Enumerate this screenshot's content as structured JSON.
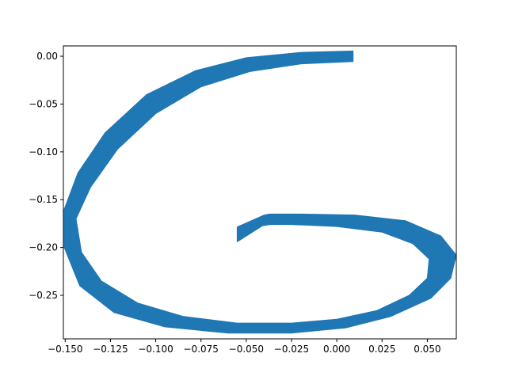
{
  "chart_data": {
    "type": "area",
    "title": "",
    "xlabel": "",
    "ylabel": "",
    "xlim": [
      -0.151,
      0.066
    ],
    "ylim": [
      -0.2955,
      0.0108
    ],
    "grid": false,
    "legend": null,
    "fill_color": "#1f77b4",
    "x_ticks": [
      {
        "value": -0.15,
        "label": "−0.150"
      },
      {
        "value": -0.125,
        "label": "−0.125"
      },
      {
        "value": -0.1,
        "label": "−0.100"
      },
      {
        "value": -0.075,
        "label": "−0.075"
      },
      {
        "value": -0.05,
        "label": "−0.050"
      },
      {
        "value": -0.025,
        "label": "−0.025"
      },
      {
        "value": 0.0,
        "label": "0.000"
      },
      {
        "value": 0.025,
        "label": "0.025"
      },
      {
        "value": 0.05,
        "label": "0.050"
      }
    ],
    "y_ticks": [
      {
        "value": 0.0,
        "label": "0.00"
      },
      {
        "value": -0.05,
        "label": "−0.05"
      },
      {
        "value": -0.1,
        "label": "−0.10"
      },
      {
        "value": -0.15,
        "label": "−0.15"
      },
      {
        "value": -0.2,
        "label": "−0.20"
      },
      {
        "value": -0.25,
        "label": "−0.25"
      }
    ],
    "series": [
      {
        "outer": [
          [
            0.009,
            0.0055
          ],
          [
            0.009,
            -0.0055
          ],
          [
            -0.02,
            -0.008
          ],
          [
            -0.048,
            -0.016
          ],
          [
            -0.075,
            -0.032
          ],
          [
            -0.1,
            -0.06
          ],
          [
            -0.121,
            -0.097
          ],
          [
            -0.136,
            -0.137
          ],
          [
            -0.144,
            -0.17
          ],
          [
            -0.141,
            -0.205
          ],
          [
            -0.13,
            -0.235
          ],
          [
            -0.11,
            -0.258
          ],
          [
            -0.085,
            -0.272
          ],
          [
            -0.055,
            -0.279
          ],
          [
            -0.025,
            -0.279
          ],
          [
            0.0,
            -0.275
          ],
          [
            0.022,
            -0.266
          ],
          [
            0.04,
            -0.25
          ],
          [
            0.05,
            -0.232
          ],
          [
            0.051,
            -0.212
          ],
          [
            0.042,
            -0.196
          ],
          [
            0.025,
            -0.184
          ],
          [
            0.0,
            -0.178
          ],
          [
            -0.025,
            -0.176
          ],
          [
            -0.037,
            -0.176
          ],
          [
            -0.041,
            -0.1772
          ],
          [
            -0.055,
            -0.194
          ],
          [
            -0.055,
            -0.2
          ],
          [
            -0.037,
            -0.2
          ],
          [
            -0.025,
            -0.188
          ],
          [
            0.0,
            -0.187
          ],
          [
            0.025,
            -0.19
          ],
          [
            0.043,
            -0.2
          ],
          [
            0.05,
            -0.212
          ],
          [
            0.048,
            -0.23
          ],
          [
            0.038,
            -0.247
          ],
          [
            0.02,
            -0.26
          ],
          [
            0.0,
            -0.268
          ],
          [
            -0.025,
            -0.272
          ],
          [
            -0.055,
            -0.272
          ],
          [
            -0.083,
            -0.266
          ],
          [
            -0.106,
            -0.252
          ],
          [
            -0.122,
            -0.23
          ],
          [
            -0.131,
            -0.203
          ],
          [
            -0.133,
            -0.172
          ],
          [
            -0.126,
            -0.14
          ],
          [
            -0.113,
            -0.105
          ],
          [
            -0.094,
            -0.072
          ],
          [
            -0.072,
            -0.046
          ],
          [
            -0.047,
            -0.03
          ],
          [
            -0.02,
            -0.02
          ],
          [
            0.009,
            -0.0055
          ]
        ],
        "shape": [
          [
            0.009,
            0.0055
          ],
          [
            -0.02,
            0.004
          ],
          [
            -0.05,
            -0.0015
          ],
          [
            -0.078,
            -0.015
          ],
          [
            -0.105,
            -0.04
          ],
          [
            -0.128,
            -0.08
          ],
          [
            -0.143,
            -0.122
          ],
          [
            -0.1505,
            -0.16
          ],
          [
            -0.1505,
            -0.2
          ],
          [
            -0.142,
            -0.24
          ],
          [
            -0.123,
            -0.268
          ],
          [
            -0.095,
            -0.283
          ],
          [
            -0.06,
            -0.2895
          ],
          [
            -0.025,
            -0.2895
          ],
          [
            0.005,
            -0.284
          ],
          [
            0.03,
            -0.272
          ],
          [
            0.052,
            -0.253
          ],
          [
            0.063,
            -0.232
          ],
          [
            0.066,
            -0.208
          ],
          [
            0.0575,
            -0.188
          ],
          [
            0.038,
            -0.172
          ],
          [
            0.01,
            -0.166
          ],
          [
            -0.02,
            -0.165
          ],
          [
            -0.037,
            -0.165
          ],
          [
            -0.04,
            -0.166
          ],
          [
            -0.055,
            -0.1785
          ],
          [
            -0.055,
            -0.194
          ],
          [
            -0.041,
            -0.1772
          ],
          [
            -0.037,
            -0.176
          ],
          [
            -0.025,
            -0.176
          ],
          [
            0.0,
            -0.178
          ],
          [
            0.025,
            -0.184
          ],
          [
            0.042,
            -0.196
          ],
          [
            0.051,
            -0.212
          ],
          [
            0.05,
            -0.232
          ],
          [
            0.04,
            -0.25
          ],
          [
            0.022,
            -0.266
          ],
          [
            0.0,
            -0.275
          ],
          [
            -0.025,
            -0.279
          ],
          [
            -0.055,
            -0.279
          ],
          [
            -0.085,
            -0.272
          ],
          [
            -0.11,
            -0.258
          ],
          [
            -0.13,
            -0.235
          ],
          [
            -0.141,
            -0.205
          ],
          [
            -0.144,
            -0.17
          ],
          [
            -0.136,
            -0.137
          ],
          [
            -0.121,
            -0.097
          ],
          [
            -0.1,
            -0.06
          ],
          [
            -0.075,
            -0.032
          ],
          [
            -0.048,
            -0.016
          ],
          [
            -0.02,
            -0.008
          ],
          [
            0.009,
            -0.0055
          ]
        ],
        "inner_edge": [
          [
            -0.055,
            -0.2
          ],
          [
            -0.037,
            -0.2
          ],
          [
            -0.025,
            -0.188
          ],
          [
            0.0,
            -0.187
          ],
          [
            0.025,
            -0.19
          ],
          [
            0.043,
            -0.2
          ],
          [
            0.05,
            -0.212
          ],
          [
            0.048,
            -0.23
          ],
          [
            0.038,
            -0.247
          ],
          [
            0.02,
            -0.26
          ],
          [
            0.0,
            -0.268
          ],
          [
            -0.025,
            -0.272
          ],
          [
            -0.055,
            -0.272
          ],
          [
            -0.083,
            -0.266
          ],
          [
            -0.106,
            -0.252
          ],
          [
            -0.122,
            -0.23
          ],
          [
            -0.131,
            -0.203
          ],
          [
            -0.133,
            -0.172
          ],
          [
            -0.126,
            -0.14
          ],
          [
            -0.113,
            -0.105
          ],
          [
            -0.094,
            -0.072
          ],
          [
            -0.072,
            -0.046
          ],
          [
            -0.047,
            -0.03
          ],
          [
            -0.02,
            -0.02
          ],
          [
            0.009,
            -0.0055
          ]
        ]
      }
    ]
  }
}
